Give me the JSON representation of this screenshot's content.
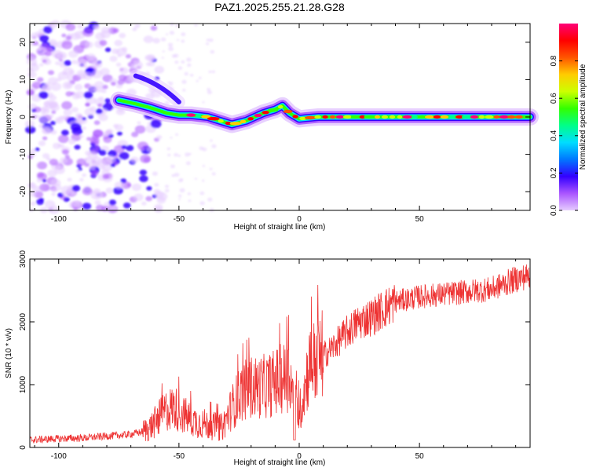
{
  "title": "PAZ1.2025.255.21.28.G28",
  "chart_data": [
    {
      "type": "heatmap",
      "name": "spectrogram",
      "xlabel": "Height of straight line (km)",
      "ylabel": "Frequency (Hz)",
      "xlim": [
        -112,
        96
      ],
      "ylim": [
        -25,
        25
      ],
      "xticks": [
        -100,
        -50,
        0,
        50
      ],
      "yticks": [
        -20,
        -10,
        0,
        10,
        20
      ],
      "colorbar": {
        "label": "Normalized spectral amplitude",
        "range": [
          0,
          1
        ],
        "ticks": [
          0.0,
          0.2,
          0.4,
          0.6,
          0.8
        ],
        "tick_labels": [
          "0.0",
          "0.2",
          "0.4",
          "0.6",
          "0.8"
        ],
        "colors": [
          "#e6ccff",
          "#aa55ff",
          "#3300ff",
          "#0077ff",
          "#00ddff",
          "#00ff88",
          "#33ff00",
          "#ccff00",
          "#ffcc00",
          "#ff5500",
          "#ff0000",
          "#ff0077"
        ]
      },
      "ridge": [
        {
          "x": -75,
          "y": 4.5
        },
        {
          "x": -68,
          "y": 3.5
        },
        {
          "x": -62,
          "y": 2.5
        },
        {
          "x": -55,
          "y": 1
        },
        {
          "x": -50,
          "y": 0.5
        },
        {
          "x": -45,
          "y": 0.5
        },
        {
          "x": -38,
          "y": 0
        },
        {
          "x": -33,
          "y": -1
        },
        {
          "x": -28,
          "y": -2
        },
        {
          "x": -22,
          "y": -1
        },
        {
          "x": -15,
          "y": 1
        },
        {
          "x": -10,
          "y": 2
        },
        {
          "x": -7,
          "y": 3
        },
        {
          "x": -4,
          "y": 1
        },
        {
          "x": 0,
          "y": -0.5
        },
        {
          "x": 3,
          "y": -0.3
        },
        {
          "x": 8,
          "y": 0
        },
        {
          "x": 30,
          "y": 0
        },
        {
          "x": 60,
          "y": 0
        },
        {
          "x": 96,
          "y": 0
        }
      ]
    },
    {
      "type": "line",
      "name": "snr",
      "xlabel": "Height of straight line (km)",
      "ylabel": "SNR (10 * v/v)",
      "xlim": [
        -112,
        96
      ],
      "ylim": [
        0,
        3000
      ],
      "xticks": [
        -100,
        -50,
        0,
        50
      ],
      "yticks": [
        0,
        1000,
        2000,
        3000
      ],
      "color": "#ee3333",
      "series": [
        {
          "name": "SNR",
          "x": [
            -112,
            -100,
            -90,
            -80,
            -72,
            -66,
            -62,
            -58,
            -55,
            -52,
            -48,
            -44,
            -40,
            -36,
            -32,
            -28,
            -24,
            -20,
            -16,
            -12,
            -8,
            -4,
            -2,
            0,
            4,
            8,
            12,
            16,
            20,
            25,
            30,
            35,
            40,
            45,
            50,
            60,
            70,
            80,
            90,
            96
          ],
          "y": [
            120,
            140,
            150,
            180,
            200,
            240,
            320,
            480,
            600,
            640,
            520,
            420,
            380,
            340,
            320,
            640,
            880,
            960,
            960,
            1000,
            1080,
            1160,
            720,
            520,
            1280,
            1440,
            1520,
            1680,
            1840,
            2000,
            2080,
            2200,
            2320,
            2360,
            2400,
            2440,
            2480,
            2520,
            2680,
            2740
          ]
        }
      ]
    }
  ]
}
